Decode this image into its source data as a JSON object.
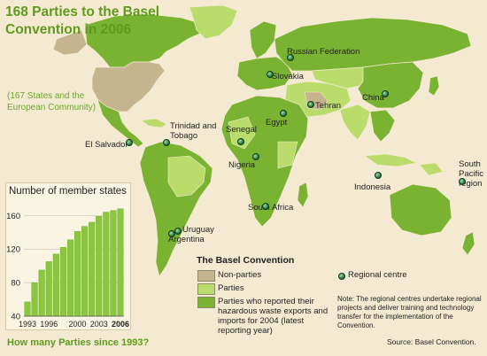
{
  "header": {
    "title": "168 Parties to the Basel Convention in 2006",
    "subtitle": "(167 States and the European Community)"
  },
  "map": {
    "place_labels": [
      "Russian Federation",
      "Slovakia",
      "China",
      "Tehran",
      "Egypt",
      "Senegal",
      "Nigeria",
      "South Africa",
      "Indonesia",
      "South Pacific region",
      "Trinidad and Tobago",
      "El Salvador",
      "Uruguay",
      "Argentina"
    ]
  },
  "chart_data": {
    "type": "bar",
    "title": "Number of member states",
    "categories": [
      "1993",
      "1994",
      "1995",
      "1996",
      "1997",
      "1998",
      "1999",
      "2000",
      "2001",
      "2002",
      "2003",
      "2004",
      "2005",
      "2006"
    ],
    "values": [
      57,
      80,
      95,
      105,
      114,
      122,
      131,
      141,
      147,
      152,
      159,
      164,
      166,
      168
    ],
    "xtick_labels": [
      "1993",
      "1996",
      "2000",
      "2003",
      "2006"
    ],
    "ytick_labels": [
      "40",
      "80",
      "120",
      "160"
    ],
    "ylim": [
      40,
      172
    ],
    "grid": true
  },
  "legend": {
    "title": "The Basel Convention",
    "items": [
      {
        "label": "Non-parties",
        "color": "#c6b48e"
      },
      {
        "label": "Parties",
        "color": "#b9dc6a"
      },
      {
        "label": "Parties who reported their hazardous waste exports and imports for 2004 (latest reporting year)",
        "color": "#7ab332"
      }
    ],
    "regional_centre": "Regional centre"
  },
  "footer": {
    "question": "How many Parties since 1993?",
    "note": "Note: The regional centres undertake regional projects and deliver training and technology transfer for the implementation of the Convention.",
    "source": "Source: Basel Convention."
  },
  "colors": {
    "non_party": "#c6b48e",
    "party": "#b9dc6a",
    "reported": "#7ab332",
    "ocean": "#f4ead2",
    "accent": "#5f9a1e"
  },
  "icons": [
    "regional-centre-dot-icon"
  ]
}
